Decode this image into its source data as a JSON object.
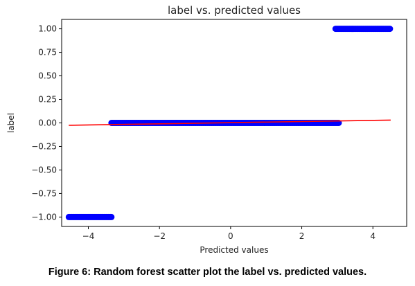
{
  "chart_data": {
    "type": "scatter",
    "title": "label vs. predicted values",
    "xlabel": "Predicted values",
    "ylabel": "label",
    "xlim": [
      -4.75,
      4.95
    ],
    "ylim": [
      -1.1,
      1.1
    ],
    "x_ticks": [
      -4,
      -2,
      0,
      2,
      4
    ],
    "x_tick_labels": [
      "−4",
      "−2",
      "0",
      "2",
      "4"
    ],
    "y_ticks": [
      1.0,
      0.75,
      0.5,
      0.25,
      0.0,
      -0.25,
      -0.5,
      -0.75,
      -1.0
    ],
    "y_tick_labels": [
      "1.00",
      "0.75",
      "0.50",
      "0.25",
      "0.00",
      "−0.25",
      "−0.50",
      "−0.75",
      "−1.00"
    ],
    "grid": false,
    "series": [
      {
        "label_value": -1,
        "x_range": [
          -4.55,
          -3.35
        ],
        "color": "#0000ff"
      },
      {
        "label_value": 0,
        "x_range": [
          -3.35,
          3.05
        ],
        "color": "#0000ff"
      },
      {
        "label_value": 1,
        "x_range": [
          2.95,
          4.5
        ],
        "color": "#0000ff"
      }
    ],
    "fit_line": {
      "x": [
        -4.55,
        4.5
      ],
      "y": [
        -0.025,
        0.03
      ],
      "color": "#ff0000"
    }
  },
  "caption": "Figure 6: Random forest scatter plot the label vs. predicted values."
}
